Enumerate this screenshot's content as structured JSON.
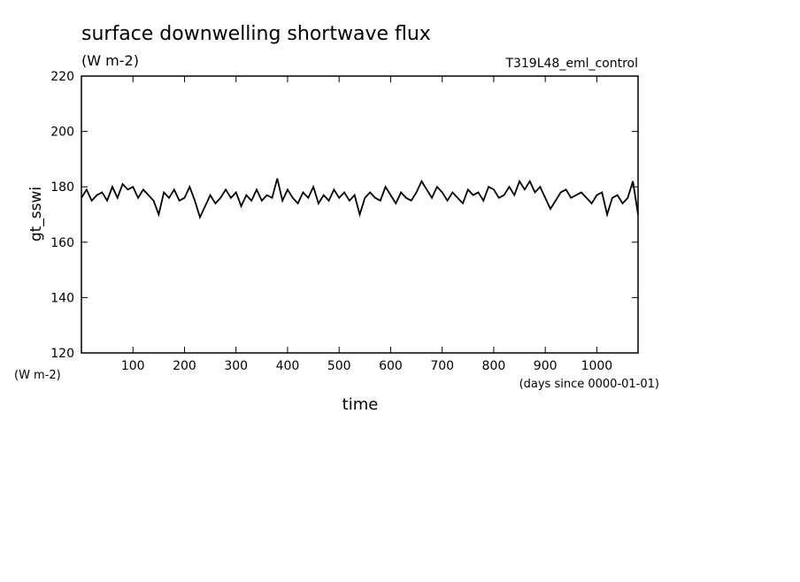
{
  "chart_data": {
    "type": "line",
    "title": "surface downwelling shortwave flux",
    "subtitle": "(W m-2)",
    "experiment": "T319L48_eml_control",
    "y_label": "gt_sswi",
    "y_unit": "(W m-2)",
    "x_label": "time",
    "x_unit": "(days since 0000-01-01)",
    "xlim": [
      0,
      1080
    ],
    "xticks": [
      100,
      200,
      300,
      400,
      500,
      600,
      700,
      800,
      900,
      1000
    ],
    "ylim": [
      120,
      220
    ],
    "yticks": [
      120,
      140,
      160,
      180,
      200,
      220
    ],
    "grid": false,
    "x": [
      0,
      10,
      20,
      30,
      40,
      50,
      60,
      70,
      80,
      90,
      100,
      110,
      120,
      130,
      140,
      150,
      160,
      170,
      180,
      190,
      200,
      210,
      220,
      230,
      240,
      250,
      260,
      270,
      280,
      290,
      300,
      310,
      320,
      330,
      340,
      350,
      360,
      370,
      380,
      390,
      400,
      410,
      420,
      430,
      440,
      450,
      460,
      470,
      480,
      490,
      500,
      510,
      520,
      530,
      540,
      550,
      560,
      570,
      580,
      590,
      600,
      610,
      620,
      630,
      640,
      650,
      660,
      670,
      680,
      690,
      700,
      710,
      720,
      730,
      740,
      750,
      760,
      770,
      780,
      790,
      800,
      810,
      820,
      830,
      840,
      850,
      860,
      870,
      880,
      890,
      900,
      910,
      920,
      930,
      940,
      950,
      960,
      970,
      980,
      990,
      1000,
      1010,
      1020,
      1030,
      1040,
      1050,
      1060,
      1070,
      1080
    ],
    "series": [
      {
        "color": "#000000",
        "values": [
          176,
          179,
          175,
          177,
          178,
          175,
          180,
          176,
          181,
          179,
          180,
          176,
          179,
          177,
          175,
          170,
          178,
          176,
          179,
          175,
          176,
          180,
          175,
          169,
          173,
          177,
          174,
          176,
          179,
          176,
          178,
          173,
          177,
          175,
          179,
          175,
          177,
          176,
          183,
          175,
          179,
          176,
          174,
          178,
          176,
          180,
          174,
          177,
          175,
          179,
          176,
          178,
          175,
          177,
          170,
          176,
          178,
          176,
          175,
          180,
          177,
          174,
          178,
          176,
          175,
          178,
          182,
          179,
          176,
          180,
          178,
          175,
          178,
          176,
          174,
          179,
          177,
          178,
          175,
          180,
          179,
          176,
          177,
          180,
          177,
          182,
          179,
          182,
          178,
          180,
          176,
          172,
          175,
          178,
          179,
          176,
          177,
          178,
          176,
          174,
          177,
          178,
          170,
          176,
          177,
          174,
          176,
          182,
          170
        ]
      }
    ]
  }
}
